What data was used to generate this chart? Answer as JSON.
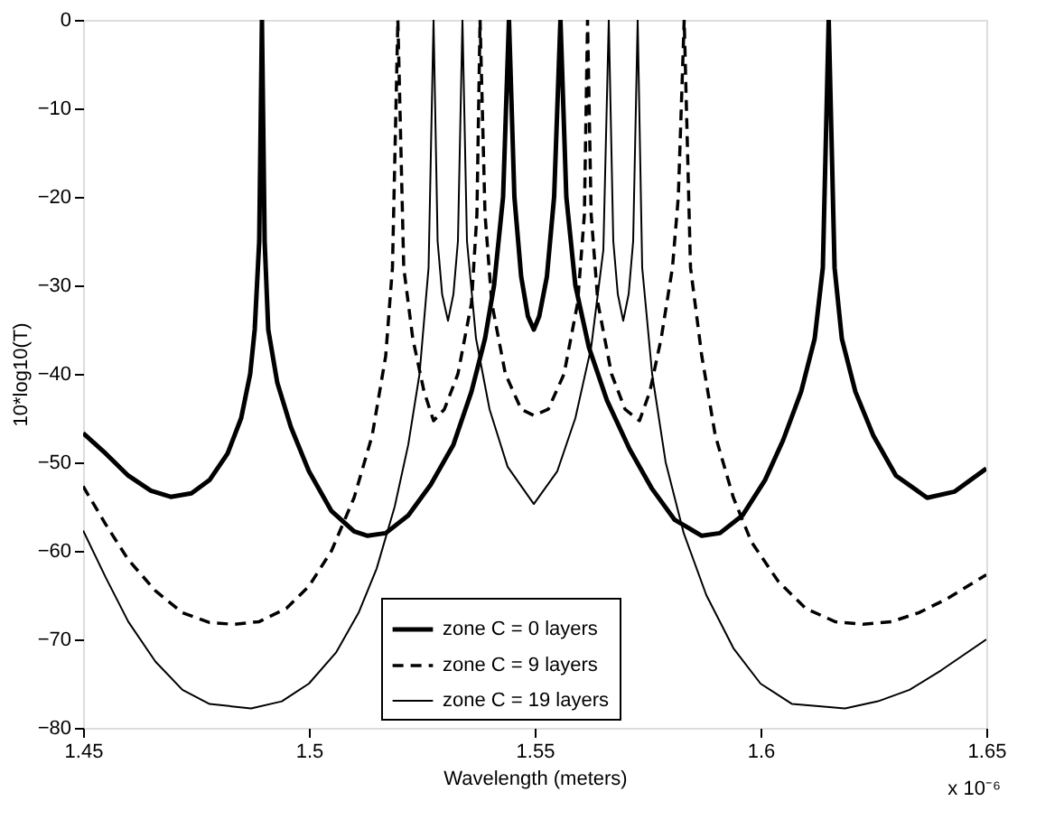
{
  "chart_data": {
    "type": "line",
    "xlabel": "Wavelength (meters)",
    "ylabel": "10*log10(T)",
    "annotations": [
      "x 10⁻⁶"
    ],
    "xlim": [
      1.45,
      1.65
    ],
    "xticks": [
      1.45,
      1.5,
      1.55,
      1.6,
      1.65
    ],
    "ylim": [
      -80,
      0
    ],
    "yticks": [
      0,
      -10,
      -20,
      -30,
      -40,
      -50,
      -60,
      -70,
      -80
    ],
    "grid": false,
    "legend": "bottom",
    "marker": "none",
    "series": [
      {
        "name": "zone C = 0 layers",
        "color": "#000000",
        "line_style": "solid",
        "x": [
          1.45,
          1.455,
          1.46,
          1.465,
          1.4694,
          1.474,
          1.478,
          1.482,
          1.485,
          1.487,
          1.488,
          1.489,
          1.4896,
          1.4902,
          1.491,
          1.493,
          1.496,
          1.5,
          1.505,
          1.51,
          1.513,
          1.517,
          1.522,
          1.527,
          1.532,
          1.536,
          1.539,
          1.541,
          1.543,
          1.5443,
          1.5455,
          1.547,
          1.5485,
          1.5498,
          1.551,
          1.5527,
          1.5543,
          1.5557,
          1.557,
          1.559,
          1.562,
          1.566,
          1.571,
          1.576,
          1.581,
          1.587,
          1.591,
          1.596,
          1.601,
          1.605,
          1.609,
          1.612,
          1.6138,
          1.6151,
          1.6164,
          1.618,
          1.621,
          1.625,
          1.63,
          1.6369,
          1.643,
          1.65
        ],
        "values": [
          -46.7,
          -49,
          -51.5,
          -53.2,
          -53.9,
          -53.5,
          -52,
          -49,
          -45,
          -40,
          -35,
          -25,
          0,
          -25,
          -35,
          -41,
          -46,
          -51,
          -55.5,
          -57.8,
          -58.3,
          -58,
          -56,
          -52.5,
          -48,
          -42,
          -36,
          -30,
          -20,
          0,
          -20,
          -29,
          -33.5,
          -35,
          -33.5,
          -29,
          -20,
          0,
          -20,
          -30,
          -37,
          -43,
          -48.5,
          -53,
          -56.5,
          -58.3,
          -58,
          -56,
          -52,
          -47.5,
          -42,
          -36,
          -28,
          0,
          -28,
          -36,
          -42,
          -47,
          -51.5,
          -54,
          -53.3,
          -50.7
        ]
      },
      {
        "name": "zone C = 9 layers",
        "color": "#000000",
        "line_style": "dashed",
        "x": [
          1.45,
          1.455,
          1.46,
          1.466,
          1.472,
          1.478,
          1.4833,
          1.489,
          1.495,
          1.5,
          1.505,
          1.51,
          1.514,
          1.517,
          1.5185,
          1.5197,
          1.521,
          1.523,
          1.5255,
          1.5276,
          1.53,
          1.533,
          1.536,
          1.5372,
          1.5379,
          1.539,
          1.5405,
          1.5435,
          1.547,
          1.5498,
          1.553,
          1.5565,
          1.5595,
          1.561,
          1.5617,
          1.5625,
          1.564,
          1.567,
          1.57,
          1.5732,
          1.5755,
          1.578,
          1.5805,
          1.5818,
          1.5831,
          1.5845,
          1.587,
          1.59,
          1.594,
          1.598,
          1.604,
          1.61,
          1.6165,
          1.6227,
          1.629,
          1.635,
          1.641,
          1.65
        ],
        "values": [
          -52.7,
          -57,
          -61,
          -64.5,
          -67,
          -68.1,
          -68.3,
          -68,
          -66.5,
          -64,
          -60,
          -54,
          -47,
          -38,
          -28,
          0,
          -28,
          -36,
          -42,
          -45.3,
          -44,
          -40,
          -32,
          -22,
          0,
          -22,
          -32,
          -40,
          -44,
          -44.7,
          -44,
          -40,
          -32,
          -22,
          0,
          -22,
          -32,
          -40,
          -44,
          -45.3,
          -42,
          -36,
          -28,
          -20,
          0,
          -28,
          -38,
          -47,
          -54,
          -59,
          -63.5,
          -66.5,
          -68,
          -68.3,
          -68,
          -67,
          -65.5,
          -62.7
        ]
      },
      {
        "name": "zone C = 19 layers",
        "color": "#000000",
        "line_style": "solid",
        "x": [
          1.45,
          1.455,
          1.46,
          1.466,
          1.472,
          1.478,
          1.4872,
          1.494,
          1.5,
          1.506,
          1.511,
          1.515,
          1.519,
          1.522,
          1.5245,
          1.5265,
          1.5276,
          1.5285,
          1.5295,
          1.5308,
          1.532,
          1.533,
          1.534,
          1.535,
          1.537,
          1.54,
          1.544,
          1.5498,
          1.555,
          1.559,
          1.5625,
          1.5652,
          1.5664,
          1.5674,
          1.5684,
          1.5696,
          1.5708,
          1.5718,
          1.5728,
          1.5738,
          1.576,
          1.579,
          1.583,
          1.588,
          1.594,
          1.6,
          1.607,
          1.6187,
          1.626,
          1.633,
          1.64,
          1.65
        ],
        "values": [
          -57.7,
          -63,
          -68,
          -72.5,
          -75.7,
          -77.3,
          -77.8,
          -77,
          -75,
          -71.5,
          -67,
          -62,
          -55,
          -48,
          -40,
          -28,
          0,
          -25,
          -31,
          -34,
          -31,
          -25,
          0,
          -25,
          -36,
          -44,
          -50.5,
          -54.7,
          -51,
          -45,
          -37,
          -26,
          0,
          -25,
          -31,
          -34,
          -31,
          -25,
          0,
          -28,
          -40,
          -50,
          -58,
          -65,
          -71,
          -75,
          -77.3,
          -77.8,
          -77,
          -75.7,
          -73.5,
          -70
        ]
      }
    ]
  }
}
